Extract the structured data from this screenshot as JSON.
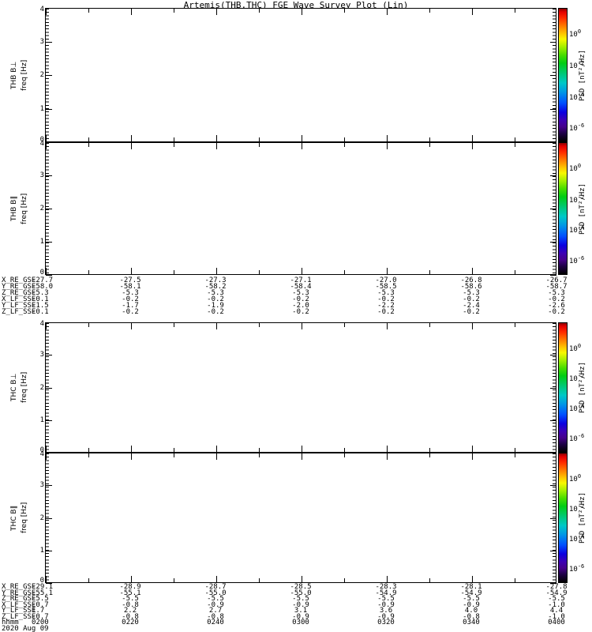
{
  "title": "Artemis(THB,THC) FGE Wave Survey Plot (Lin)",
  "axes": {
    "freq_label": "freq [Hz]",
    "freq_ticks": [
      "4",
      "3",
      "2",
      "1",
      "0"
    ]
  },
  "panels": [
    {
      "name": "THB B⊥"
    },
    {
      "name": "THB B∥"
    },
    {
      "name": "THC B⊥"
    },
    {
      "name": "THC B∥"
    }
  ],
  "colorbar": {
    "label": "PSD [nT²/Hz]",
    "ticks": [
      {
        "base": "10",
        "exp": "0"
      },
      {
        "base": "10",
        "exp": "-2"
      },
      {
        "base": "10",
        "exp": "-4"
      },
      {
        "base": "10",
        "exp": "-6"
      }
    ],
    "colormap": "rainbow"
  },
  "ephemeris_blocks": [
    {
      "rows": [
        {
          "label": "X_RE_GSE",
          "values": [
            "-27.7",
            "-27.5",
            "-27.3",
            "-27.1",
            "-27.0",
            "-26.8",
            "-26.7"
          ]
        },
        {
          "label": "Y_RE_GSE",
          "values": [
            "-58.0",
            "-58.1",
            "-58.2",
            "-58.4",
            "-58.5",
            "-58.6",
            "-58.7"
          ]
        },
        {
          "label": "Z_RE_GSE",
          "values": [
            "-5.3",
            "-5.3",
            "-5.3",
            "-5.3",
            "-5.3",
            "-5.3",
            "-5.3"
          ]
        },
        {
          "label": "X_LF_SSE",
          "values": [
            "-0.1",
            "-0.2",
            "-0.2",
            "-0.2",
            "-0.2",
            "-0.2",
            "-0.2"
          ]
        },
        {
          "label": "Y_LF_SSE",
          "values": [
            "-1.5",
            "-1.7",
            "-1.9",
            "-2.0",
            "-2.2",
            "-2.4",
            "-2.6"
          ]
        },
        {
          "label": "Z_LF_SSE",
          "values": [
            "-0.1",
            "-0.2",
            "-0.2",
            "-0.2",
            "-0.2",
            "-0.2",
            "-0.2"
          ]
        }
      ]
    },
    {
      "rows": [
        {
          "label": "X_RE_GSE",
          "values": [
            "-29.1",
            "-28.9",
            "-28.7",
            "-28.5",
            "-28.3",
            "-28.1",
            "-27.8"
          ]
        },
        {
          "label": "Y_RE_GSE",
          "values": [
            "-55.1",
            "-55.1",
            "-55.0",
            "-55.0",
            "-54.9",
            "-54.9",
            "-54.9"
          ]
        },
        {
          "label": "Z_RE_GSE",
          "values": [
            "-5.5",
            "-5.5",
            "-5.5",
            "-5.5",
            "-5.5",
            "-5.5",
            "-5.5"
          ]
        },
        {
          "label": "X_LF_SSE",
          "values": [
            "-0.7",
            "-0.8",
            "-0.9",
            "-0.9",
            "-0.9",
            "-0.9",
            "-1.0"
          ]
        },
        {
          "label": "Y_LF_SSE",
          "values": [
            "1.7",
            "2.2",
            "2.7",
            "3.1",
            "3.6",
            "4.0",
            "4.4"
          ]
        },
        {
          "label": "Z_LF_SSE",
          "values": [
            "-0.7",
            "-0.8",
            "-0.8",
            "-0.9",
            "-0.9",
            "-0.8",
            "-1.0"
          ]
        },
        {
          "label": "hhmm",
          "values": [
            "0200",
            "0220",
            "0240",
            "0300",
            "0320",
            "0340",
            "0400"
          ]
        }
      ],
      "date": "2020 Aug 09"
    }
  ],
  "chart_data": {
    "type": "heatmap",
    "title": "Artemis(THB,THC) FGE Wave Survey Plot (Lin)",
    "x": {
      "label": "hhmm",
      "date": "2020 Aug 09",
      "ticks": [
        "0200",
        "0220",
        "0240",
        "0300",
        "0320",
        "0340",
        "0400"
      ],
      "tick_interval_min": 20
    },
    "panels": [
      {
        "name": "THB B⊥",
        "ylabel": "freq [Hz]",
        "ylim": [
          0,
          4
        ],
        "values": [],
        "note": "blank panel - no spectrogram data rendered"
      },
      {
        "name": "THB B∥",
        "ylabel": "freq [Hz]",
        "ylim": [
          0,
          4
        ],
        "values": [],
        "note": "blank panel - no spectrogram data rendered"
      },
      {
        "name": "THC B⊥",
        "ylabel": "freq [Hz]",
        "ylim": [
          0,
          4
        ],
        "values": [],
        "note": "blank panel - no spectrogram data rendered"
      },
      {
        "name": "THC B∥",
        "ylabel": "freq [Hz]",
        "ylim": [
          0,
          4
        ],
        "values": [],
        "note": "blank panel - no spectrogram data rendered"
      }
    ],
    "colorbar": {
      "label": "PSD [nT²/Hz]",
      "tick_labels": [
        "1e0",
        "1e-2",
        "1e-4",
        "1e-6"
      ],
      "colormap": "rainbow"
    },
    "grid": false,
    "legend": false
  }
}
